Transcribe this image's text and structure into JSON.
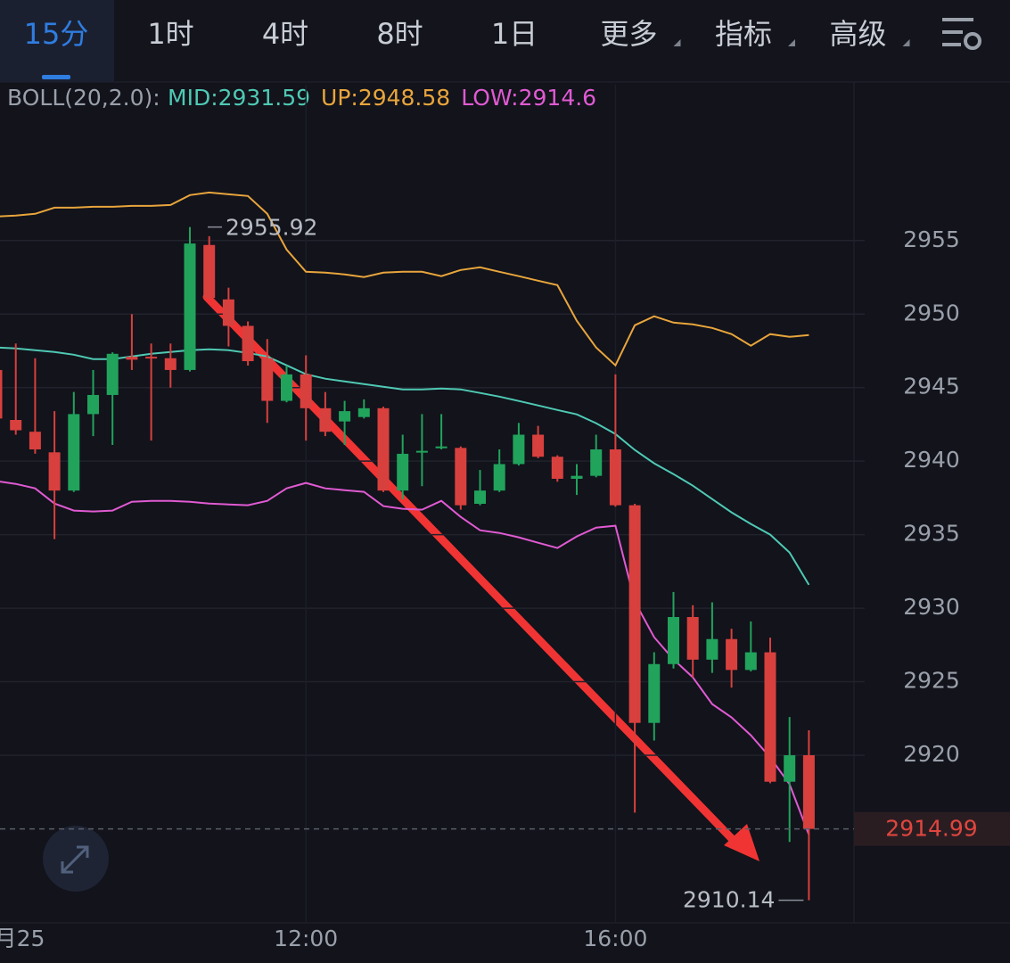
{
  "toolbar": {
    "tabs": [
      "15分",
      "1时",
      "4时",
      "8时",
      "1日",
      "更多",
      "指标",
      "高级"
    ],
    "active": 0
  },
  "chart_data": {
    "type": "candlestick",
    "indicator": "BOLL(20,2.0):",
    "categories": [
      "月25",
      null,
      null,
      null,
      null,
      null,
      null,
      null,
      null,
      null,
      null,
      null,
      null,
      null,
      null,
      null,
      "12:00",
      null,
      null,
      null,
      null,
      null,
      null,
      null,
      null,
      null,
      null,
      null,
      null,
      null,
      null,
      null,
      "16:00",
      null,
      null,
      null,
      null,
      null,
      null,
      null,
      null,
      null,
      null
    ],
    "open": [
      2946.2,
      2942.8,
      2942.0,
      2940.6,
      2938.0,
      2943.2,
      2944.5,
      2947.1,
      2947.1,
      2947.0,
      2946.2,
      2954.7,
      2951.0,
      2949.2,
      2947.0,
      2944.1,
      2945.9,
      2943.6,
      2942.7,
      2943.0,
      2943.6,
      2938.0,
      2940.6,
      2940.9,
      2940.9,
      2937.1,
      2938.0,
      2939.8,
      2941.8,
      2940.3,
      2938.8,
      2939.0,
      2940.8,
      2937.0,
      2922.2,
      2926.2,
      2929.4,
      2926.5,
      2927.9,
      2925.8,
      2927.0,
      2918.2,
      2920.0
    ],
    "high": [
      2947.8,
      2948.0,
      2947.0,
      2943.4,
      2944.7,
      2946.2,
      2947.4,
      2950.0,
      2948.0,
      2948.0,
      2955.92,
      2955.3,
      2951.8,
      2949.5,
      2948.3,
      2946.5,
      2947.2,
      2944.7,
      2944.1,
      2944.2,
      2943.7,
      2941.8,
      2943.2,
      2943.2,
      2941.0,
      2939.4,
      2940.8,
      2942.6,
      2942.4,
      2940.4,
      2939.8,
      2941.8,
      2945.9,
      2937.1,
      2927.0,
      2931.1,
      2930.2,
      2930.4,
      2928.6,
      2929.1,
      2928.0,
      2922.6,
      2921.7
    ],
    "low": [
      2942.3,
      2941.8,
      2940.5,
      2934.7,
      2937.9,
      2941.7,
      2941.1,
      2946.2,
      2941.4,
      2945.0,
      2946.1,
      2951.0,
      2947.8,
      2946.5,
      2942.6,
      2944.0,
      2941.4,
      2941.7,
      2941.1,
      2942.9,
      2937.9,
      2937.4,
      2938.3,
      2940.8,
      2936.7,
      2937.0,
      2937.9,
      2939.7,
      2940.2,
      2938.6,
      2937.7,
      2938.9,
      2936.9,
      2916.1,
      2921.0,
      2925.9,
      2925.3,
      2925.6,
      2924.6,
      2925.7,
      2918.1,
      2914.1,
      2910.14
    ],
    "close": [
      2942.9,
      2942.1,
      2940.8,
      2938.0,
      2943.2,
      2944.5,
      2947.3,
      2946.9,
      2947.0,
      2946.2,
      2954.8,
      2951.1,
      2949.2,
      2946.8,
      2944.1,
      2945.9,
      2943.6,
      2942.0,
      2943.4,
      2943.6,
      2938.0,
      2940.5,
      2940.7,
      2941.0,
      2937.0,
      2938.0,
      2939.8,
      2941.8,
      2940.3,
      2938.8,
      2939.0,
      2940.8,
      2937.0,
      2922.2,
      2926.2,
      2929.4,
      2926.5,
      2927.9,
      2925.8,
      2927.0,
      2918.2,
      2920.0,
      2914.99
    ],
    "up_color": "#21a35c",
    "down_color": "#d8403e",
    "series": [
      {
        "name": "MID:",
        "color": "#4fc9b4",
        "values": [
          2947.73,
          2947.67,
          2947.55,
          2947.42,
          2947.24,
          2946.94,
          2946.94,
          2947.12,
          2947.3,
          2947.42,
          2947.55,
          2947.61,
          2947.55,
          2947.36,
          2947.12,
          2946.52,
          2945.91,
          2945.61,
          2945.42,
          2945.24,
          2945.06,
          2944.88,
          2944.88,
          2944.94,
          2944.88,
          2944.64,
          2944.39,
          2944.09,
          2943.79,
          2943.48,
          2943.18,
          2942.58,
          2941.85,
          2940.76,
          2939.85,
          2939.12,
          2938.33,
          2937.42,
          2936.52,
          2935.73,
          2935.0,
          2933.79,
          2931.59
        ]
      },
      {
        "name": "UP:",
        "color": "#e8a53c",
        "values": [
          2956.64,
          2956.7,
          2956.82,
          2957.24,
          2957.24,
          2957.3,
          2957.3,
          2957.36,
          2957.36,
          2957.42,
          2958.09,
          2958.27,
          2958.15,
          2958.03,
          2956.82,
          2954.39,
          2952.88,
          2952.82,
          2952.7,
          2952.52,
          2952.82,
          2952.88,
          2952.88,
          2952.58,
          2953.0,
          2953.18,
          2952.88,
          2952.58,
          2952.27,
          2951.97,
          2949.55,
          2947.73,
          2946.52,
          2949.24,
          2949.85,
          2949.42,
          2949.3,
          2949.06,
          2948.64,
          2947.85,
          2948.64,
          2948.45,
          2948.58
        ]
      },
      {
        "name": "LOW:",
        "color": "#e05ad2",
        "values": [
          2938.64,
          2938.45,
          2938.15,
          2937.12,
          2936.64,
          2936.58,
          2936.64,
          2937.24,
          2937.3,
          2937.3,
          2937.24,
          2937.12,
          2937.06,
          2937.0,
          2937.3,
          2938.15,
          2938.52,
          2938.15,
          2938.03,
          2937.91,
          2936.94,
          2936.76,
          2936.7,
          2937.3,
          2936.21,
          2935.3,
          2935.12,
          2934.82,
          2934.45,
          2934.09,
          2934.88,
          2935.48,
          2935.61,
          2930.45,
          2928.03,
          2926.52,
          2925.3,
          2923.48,
          2922.58,
          2921.36,
          2919.85,
          2918.03,
          2914.6
        ]
      }
    ],
    "ylim": [
      2908.6,
      2965.6
    ],
    "yticks": [
      2920,
      2925,
      2930,
      2935,
      2940,
      2945,
      2950,
      2955
    ],
    "grid": true
  }
}
